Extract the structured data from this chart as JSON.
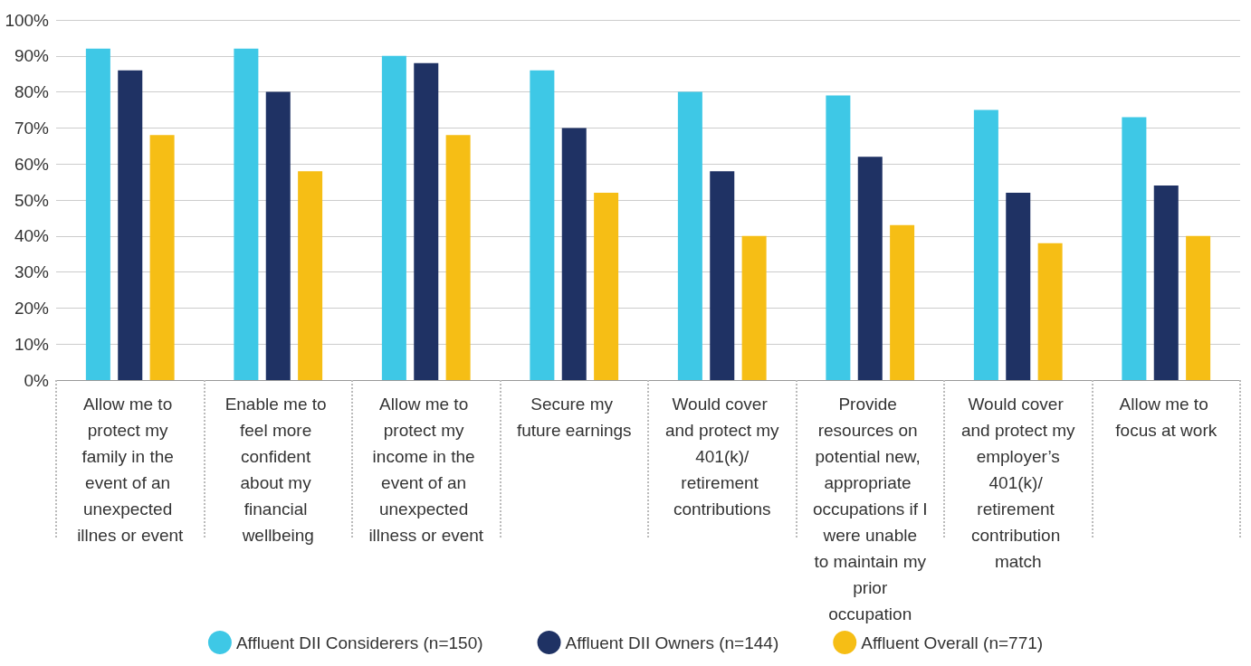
{
  "chart_data": {
    "type": "bar",
    "categories": [
      "Allow me to protect my family in the event of an unexpected illnes or event",
      "Enable me to feel more confident about my financial wellbeing",
      "Allow me to protect my income in the event of an unexpected illness or event",
      "Secure my future earnings",
      "Would cover and protect my 401(k)/ retirement contributions",
      "Provide resources on potential new, appropriate occupations if I were unable to maintain my prior occupation",
      "Would cover and protect my employer’s 401(k)/ retirement contribution match",
      "Allow me to focus at work"
    ],
    "series": [
      {
        "name": "Affluent DII Considerers (n=150)",
        "color": "#3ec8e6",
        "values": [
          92,
          92,
          90,
          86,
          80,
          79,
          75,
          73
        ]
      },
      {
        "name": "Affluent DII Owners (n=144)",
        "color": "#1f3264",
        "values": [
          86,
          80,
          88,
          70,
          58,
          62,
          52,
          54
        ]
      },
      {
        "name": "Affluent Overall (n=771)",
        "color": "#f6be15",
        "values": [
          68,
          58,
          68,
          52,
          40,
          43,
          38,
          40
        ]
      }
    ],
    "ylim": [
      0,
      100
    ],
    "yticks": [
      {
        "value": 0,
        "label": "0%"
      },
      {
        "value": 10,
        "label": "10%"
      },
      {
        "value": 20,
        "label": "20%"
      },
      {
        "value": 30,
        "label": "30%"
      },
      {
        "value": 40,
        "label": "40%"
      },
      {
        "value": 50,
        "label": "50%"
      },
      {
        "value": 60,
        "label": "60%"
      },
      {
        "value": 70,
        "label": "70%"
      },
      {
        "value": 80,
        "label": "80%"
      },
      {
        "value": 90,
        "label": "90%"
      },
      {
        "value": 100,
        "label": "100%"
      }
    ],
    "grid": "y",
    "legend": "bottom"
  }
}
